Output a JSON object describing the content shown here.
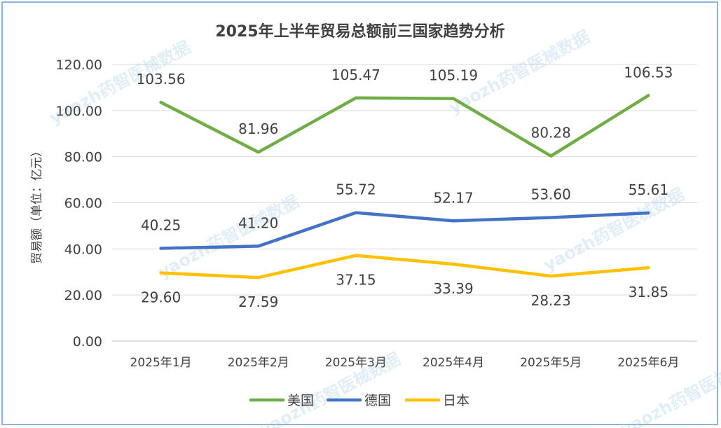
{
  "chart_data": {
    "type": "line",
    "title": "2025年上半年贸易总额前三国家趋势分析",
    "ylabel": "贸易额（单位：亿元）",
    "xlabel": "",
    "categories": [
      "2025年1月",
      "2025年2月",
      "2025年3月",
      "2025年4月",
      "2025年5月",
      "2025年6月"
    ],
    "ylim": [
      0,
      120
    ],
    "yticks": [
      "0.00",
      "20.00",
      "40.00",
      "60.00",
      "80.00",
      "100.00",
      "120.00"
    ],
    "grid": true,
    "legend_position": "bottom",
    "series": [
      {
        "name": "美国",
        "color": "#70ad47",
        "values": [
          103.56,
          81.96,
          105.47,
          105.19,
          80.28,
          106.53
        ],
        "labels": [
          "103.56",
          "81.96",
          "105.47",
          "105.19",
          "80.28",
          "106.53"
        ]
      },
      {
        "name": "德国",
        "color": "#4472c4",
        "values": [
          40.25,
          41.2,
          55.72,
          52.17,
          53.6,
          55.61
        ],
        "labels": [
          "40.25",
          "41.20",
          "55.72",
          "52.17",
          "53.60",
          "55.61"
        ]
      },
      {
        "name": "日本",
        "color": "#ffc000",
        "values": [
          29.6,
          27.59,
          37.15,
          33.39,
          28.23,
          31.85
        ],
        "labels": [
          "29.60",
          "27.59",
          "37.15",
          "33.39",
          "28.23",
          "31.85"
        ]
      }
    ],
    "watermark": "yaozh药智医械数据"
  }
}
